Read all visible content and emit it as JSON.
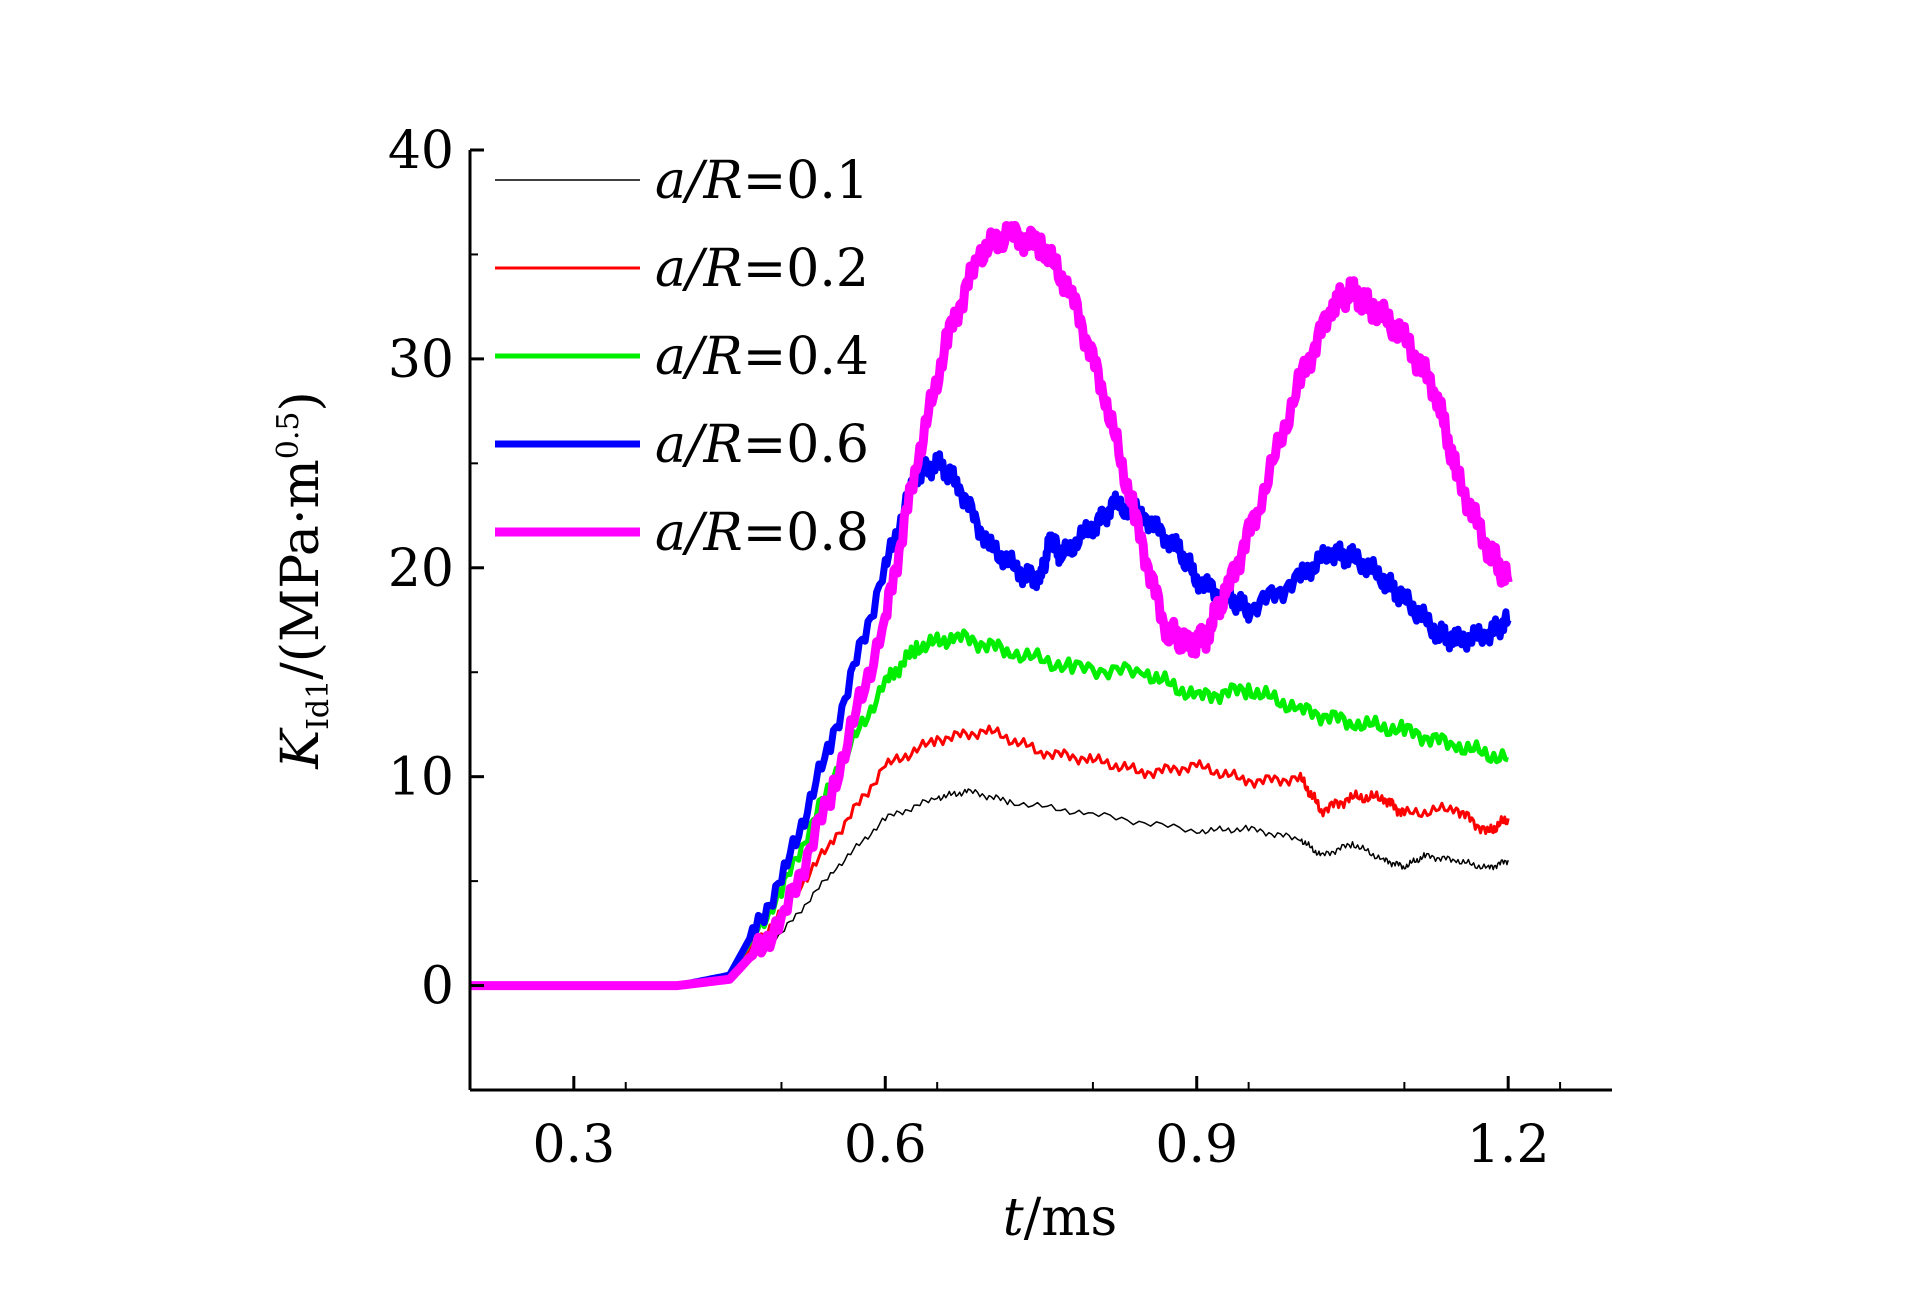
{
  "chart_data": {
    "type": "line",
    "xlabel": {
      "var": "t",
      "unit": "/ms"
    },
    "ylabel": {
      "var": "K",
      "sub": "Id1",
      "unit": "/(MPa·m",
      "sup": "0.5",
      "close": ")"
    },
    "xlim": [
      0.2,
      1.3
    ],
    "ylim": [
      -5,
      40
    ],
    "xticks": [
      0.3,
      0.6,
      0.9,
      1.2
    ],
    "xtick_labels": [
      "0.3",
      "0.6",
      "0.9",
      "1.2"
    ],
    "yticks": [
      0,
      10,
      20,
      30,
      40
    ],
    "ytick_labels": [
      "0",
      "10",
      "20",
      "30",
      "40"
    ],
    "grid": false,
    "legend_position": "top-left",
    "series": [
      {
        "name": "a/R=0.1",
        "name_var": "a/R",
        "name_val": "=0.1",
        "color": "#000000",
        "width": 1.5,
        "x": [
          0.2,
          0.4,
          0.45,
          0.5,
          0.55,
          0.6,
          0.65,
          0.68,
          0.72,
          0.8,
          0.9,
          0.95,
          1.0,
          1.02,
          1.05,
          1.08,
          1.1,
          1.12,
          1.15,
          1.18,
          1.2
        ],
        "y": [
          0,
          0,
          0.5,
          2.5,
          5.5,
          8.0,
          9.0,
          9.3,
          8.8,
          8.2,
          7.4,
          7.5,
          7.0,
          6.2,
          6.8,
          6.0,
          5.7,
          6.2,
          6.0,
          5.6,
          6.0
        ]
      },
      {
        "name": "a/R=0.2",
        "name_var": "a/R",
        "name_val": "=0.2",
        "color": "#ff0000",
        "width": 3,
        "x": [
          0.2,
          0.4,
          0.45,
          0.5,
          0.55,
          0.6,
          0.65,
          0.7,
          0.75,
          0.8,
          0.85,
          0.9,
          0.95,
          1.0,
          1.02,
          1.05,
          1.08,
          1.1,
          1.15,
          1.18,
          1.2
        ],
        "y": [
          0,
          0,
          0.5,
          3.5,
          7.0,
          10.5,
          11.8,
          12.2,
          11.2,
          10.8,
          10.2,
          10.5,
          9.8,
          9.9,
          8.4,
          9.0,
          9.0,
          8.2,
          8.5,
          7.3,
          8.0
        ]
      },
      {
        "name": "a/R=0.4",
        "name_var": "a/R",
        "name_val": "=0.4",
        "color": "#00ee00",
        "width": 5,
        "x": [
          0.2,
          0.4,
          0.45,
          0.5,
          0.55,
          0.6,
          0.63,
          0.67,
          0.72,
          0.78,
          0.85,
          0.9,
          0.95,
          1.0,
          1.05,
          1.1,
          1.15,
          1.2
        ],
        "y": [
          0,
          0,
          0.5,
          4.5,
          10.0,
          14.5,
          16.2,
          16.7,
          16.0,
          15.2,
          15.0,
          13.8,
          14.2,
          13.2,
          12.6,
          12.2,
          11.5,
          10.8
        ]
      },
      {
        "name": "a/R=0.6",
        "name_var": "a/R",
        "name_val": "=0.6",
        "color": "#0000ff",
        "width": 7,
        "x": [
          0.2,
          0.4,
          0.45,
          0.5,
          0.55,
          0.6,
          0.63,
          0.65,
          0.67,
          0.7,
          0.73,
          0.75,
          0.76,
          0.77,
          0.8,
          0.82,
          0.85,
          0.88,
          0.9,
          0.93,
          0.95,
          1.0,
          1.03,
          1.05,
          1.08,
          1.1,
          1.13,
          1.15,
          1.18,
          1.2
        ],
        "y": [
          0,
          0,
          0.5,
          5.0,
          12.0,
          20.0,
          24.5,
          25.0,
          24.0,
          21.0,
          19.8,
          19.5,
          21.5,
          20.5,
          22.0,
          23.0,
          22.5,
          21.0,
          19.5,
          18.5,
          18.0,
          19.5,
          20.8,
          20.5,
          19.5,
          18.5,
          17.0,
          16.5,
          16.8,
          17.5
        ]
      },
      {
        "name": "a/R=0.8",
        "name_var": "a/R",
        "name_val": "=0.8",
        "color": "#ff00ff",
        "width": 9,
        "x": [
          0.2,
          0.4,
          0.45,
          0.5,
          0.55,
          0.6,
          0.63,
          0.66,
          0.69,
          0.72,
          0.75,
          0.78,
          0.81,
          0.84,
          0.87,
          0.89,
          0.91,
          0.93,
          0.96,
          1.0,
          1.03,
          1.05,
          1.07,
          1.1,
          1.13,
          1.15,
          1.18,
          1.2
        ],
        "y": [
          0,
          0,
          0.3,
          3.0,
          9.5,
          17.5,
          25.0,
          31.0,
          35.0,
          36.0,
          35.5,
          33.0,
          28.5,
          22.5,
          17.0,
          16.3,
          16.8,
          19.0,
          23.0,
          29.0,
          32.5,
          33.2,
          32.5,
          31.0,
          28.5,
          24.5,
          21.0,
          19.3
        ]
      }
    ]
  }
}
